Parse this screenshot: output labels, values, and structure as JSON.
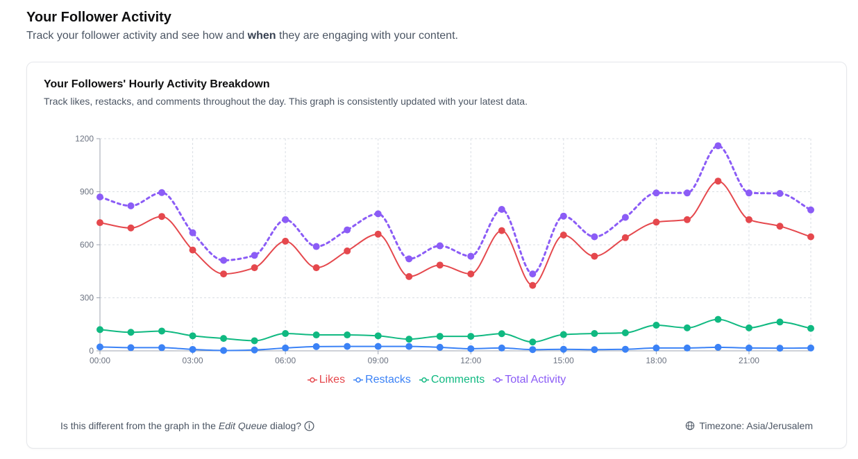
{
  "header": {
    "title": "Your Follower Activity",
    "subtitle_before": "Track your follower activity and see how and ",
    "subtitle_bold": "when",
    "subtitle_after": " they are engaging with your content."
  },
  "card": {
    "title": "Your Followers' Hourly Activity Breakdown",
    "description": "Track likes, restacks, and comments throughout the day. This graph is consistently updated with your latest data.",
    "footer_before": "Is this different from the graph in the ",
    "footer_italic": "Edit Queue",
    "footer_after": " dialog?",
    "timezone_label": "Timezone: Asia/Jerusalem"
  },
  "chart_data": {
    "type": "line",
    "x": [
      "00:00",
      "01:00",
      "02:00",
      "03:00",
      "04:00",
      "05:00",
      "06:00",
      "07:00",
      "08:00",
      "09:00",
      "10:00",
      "11:00",
      "12:00",
      "13:00",
      "14:00",
      "15:00",
      "16:00",
      "17:00",
      "18:00",
      "19:00",
      "20:00",
      "21:00",
      "22:00",
      "23:00"
    ],
    "x_tick_labels": [
      "00:00",
      "03:00",
      "06:00",
      "09:00",
      "12:00",
      "15:00",
      "18:00",
      "21:00"
    ],
    "y_ticks": [
      0,
      300,
      600,
      900,
      1200
    ],
    "ylim": [
      0,
      1200
    ],
    "grid": true,
    "legend_position": "bottom",
    "series": [
      {
        "name": "Likes",
        "color": "#e5484d",
        "dashed": false,
        "values": [
          725,
          695,
          760,
          570,
          435,
          470,
          620,
          470,
          565,
          660,
          420,
          485,
          435,
          680,
          370,
          655,
          535,
          640,
          728,
          742,
          960,
          742,
          705,
          645
        ]
      },
      {
        "name": "Restacks",
        "color": "#3b82f6",
        "dashed": false,
        "values": [
          22,
          18,
          18,
          8,
          2,
          5,
          16,
          24,
          25,
          25,
          25,
          20,
          12,
          16,
          7,
          9,
          7,
          9,
          16,
          16,
          20,
          16,
          15,
          16
        ]
      },
      {
        "name": "Comments",
        "color": "#10b981",
        "dashed": false,
        "values": [
          120,
          105,
          112,
          85,
          70,
          57,
          98,
          90,
          90,
          85,
          66,
          82,
          82,
          97,
          50,
          92,
          98,
          102,
          145,
          130,
          178,
          130,
          163,
          127
        ]
      },
      {
        "name": "Total Activity",
        "color": "#8b5cf6",
        "dashed": true,
        "values": [
          870,
          820,
          895,
          668,
          512,
          540,
          742,
          590,
          684,
          775,
          520,
          594,
          535,
          800,
          435,
          762,
          645,
          755,
          893,
          893,
          1160,
          893,
          890,
          797
        ]
      }
    ]
  }
}
